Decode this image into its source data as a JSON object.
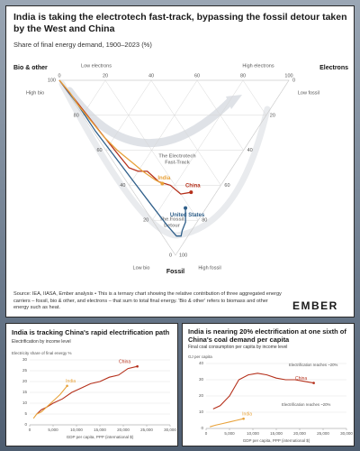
{
  "chart_data": [
    {
      "type": "ternary",
      "title": "India is taking the electrotech fast-track, bypassing the fossil detour taken by the West and China",
      "subtitle": "Share of final energy demand, 1900–2023 (%)",
      "corners": {
        "bio": "Bio & other",
        "electrons": "Electrons",
        "fossil": "Fossil"
      },
      "edge_labels": {
        "low_electrons": "Low electrons",
        "high_electrons": "High electrons",
        "high_bio": "High bio",
        "low_bio": "Low bio",
        "high_fossil": "High fossil",
        "low_fossil": "Low fossil"
      },
      "ticks": [
        0,
        20,
        40,
        60,
        80,
        100
      ],
      "annotations": [
        [
          "The Electrotech",
          "Fast-Track"
        ],
        [
          "The Fossil",
          "Detour"
        ]
      ],
      "series": [
        {
          "name": "United States",
          "color": "#2f5f8a",
          "bio": [
            100,
            85,
            70,
            55,
            40,
            25,
            12,
            5,
            3,
            4,
            5,
            7,
            9
          ],
          "electrons": [
            0,
            1,
            1,
            2,
            3,
            4,
            5,
            6,
            8,
            10,
            14,
            16,
            18
          ]
        },
        {
          "name": "China",
          "color": "#b5301b",
          "bio": [
            100,
            90,
            78,
            66,
            55,
            45,
            40,
            36,
            28,
            22,
            15,
            11
          ],
          "electrons": [
            0,
            1,
            2,
            3,
            4,
            5,
            8,
            12,
            14,
            18,
            20,
            25
          ]
        },
        {
          "name": "India",
          "color": "#e8a23a",
          "bio": [
            100,
            92,
            85,
            75,
            65,
            55,
            45,
            38,
            30,
            26
          ],
          "electrons": [
            0,
            1,
            1,
            2,
            3,
            5,
            8,
            10,
            13,
            15
          ]
        }
      ]
    },
    {
      "type": "line",
      "title": "India is tracking China's rapid electrification path",
      "subtitle": "Electrification by income level",
      "ylabel": "Electricity share of final energy %",
      "xlabel": "GDP per capita, PPP (international $)",
      "xlim": [
        0,
        30000
      ],
      "xticks": [
        0,
        {
          "value": 5000,
          "label": "5,000"
        },
        {
          "value": 10000,
          "label": "10,000"
        },
        {
          "value": 15000,
          "label": "15,000"
        },
        {
          "value": 20000,
          "label": "20,000"
        },
        {
          "value": 25000,
          "label": "25,000"
        },
        {
          "value": 30000,
          "label": "30,000"
        }
      ],
      "ylim": [
        0,
        30
      ],
      "yticks": [
        0,
        5,
        10,
        15,
        20,
        25,
        30
      ],
      "grid": true,
      "series": [
        {
          "name": "China",
          "color": "#b5301b",
          "x": [
            1500,
            2500,
            3500,
            5000,
            7000,
            9000,
            11000,
            13000,
            15000,
            17000,
            19000,
            21000,
            23000
          ],
          "values": [
            5,
            7,
            8,
            10,
            12,
            15,
            17,
            19,
            20,
            22,
            23,
            26,
            27
          ]
        },
        {
          "name": "India",
          "color": "#e8a23a",
          "x": [
            800,
            1500,
            2500,
            3500,
            5000,
            6500,
            8000
          ],
          "values": [
            3,
            5,
            6,
            8,
            11,
            14,
            18
          ]
        }
      ]
    },
    {
      "type": "line",
      "title": "India is nearing 20% electrification at one sixth of China's coal demand per capita",
      "subtitle": "Final coal consumption per capita by income level",
      "ylabel": "GJ per capita",
      "xlabel": "GDP per capita, PPP (international $)",
      "xlim": [
        0,
        30000
      ],
      "xticks": [
        0,
        {
          "value": 5000,
          "label": "5,000"
        },
        {
          "value": 10000,
          "label": "10,000"
        },
        {
          "value": 15000,
          "label": "15,000"
        },
        {
          "value": 20000,
          "label": "20,000"
        },
        {
          "value": 25000,
          "label": "25,000"
        },
        {
          "value": 30000,
          "label": "30,000"
        }
      ],
      "ylim": [
        0,
        40
      ],
      "yticks": [
        0,
        10,
        20,
        30,
        40
      ],
      "grid": true,
      "annotations": [
        "Electrification reaches ~20%",
        "Electrification reaches ~20%"
      ],
      "series": [
        {
          "name": "China",
          "color": "#b5301b",
          "x": [
            1500,
            3000,
            5000,
            7000,
            9000,
            11000,
            13000,
            15000,
            17000,
            19000,
            21000,
            23000
          ],
          "values": [
            12,
            14,
            20,
            30,
            33,
            34,
            33,
            31,
            30,
            30,
            29,
            28
          ]
        },
        {
          "name": "India",
          "color": "#e8a23a",
          "x": [
            800,
            2000,
            3500,
            5000,
            6500,
            8000
          ],
          "values": [
            1,
            2,
            3,
            4,
            5,
            6
          ]
        }
      ]
    }
  ],
  "source": "Source: IEA, IIASA, Ember analysis • This is a ternary chart showing the relative contribution of three aggregated energy carriers – fossil, bio & other, and electrons – that sum to total final energy. 'Bio & other' refers to biomass and other energy such as heat.",
  "logo": "EMBER"
}
